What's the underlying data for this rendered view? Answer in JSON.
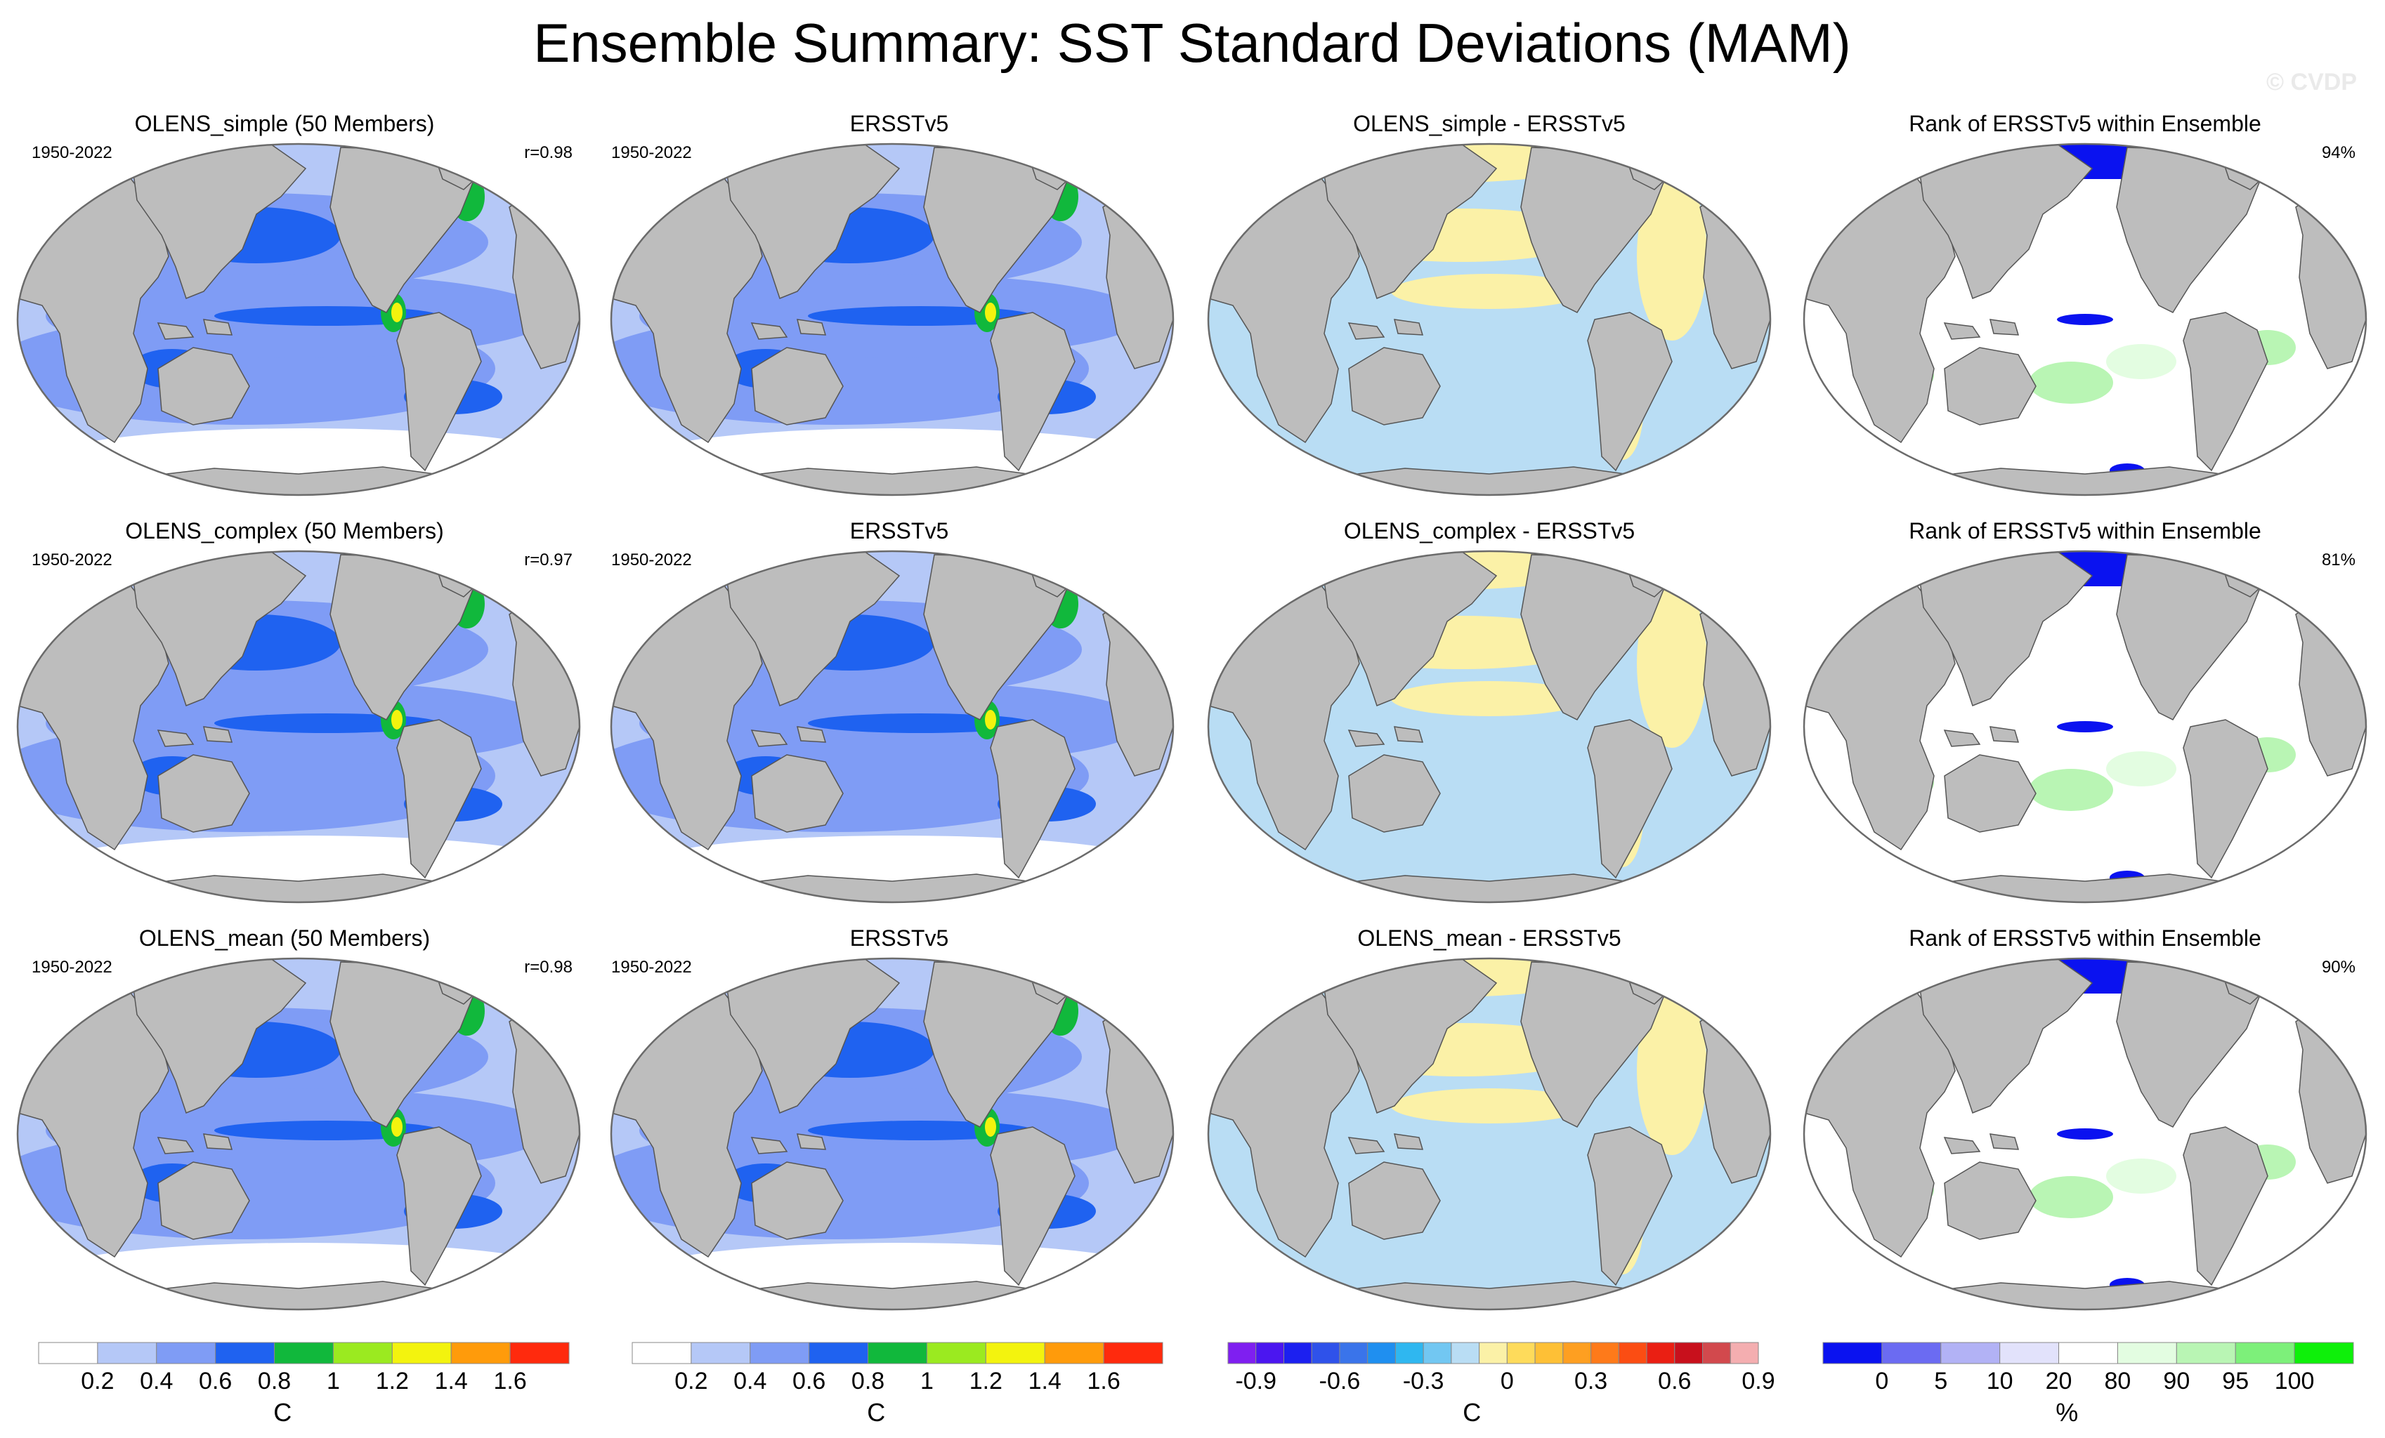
{
  "title": "Ensemble Summary: SST Standard Deviations (MAM)",
  "watermark": "© CVDP",
  "colors": {
    "land": "#bdbdbd",
    "ocean_low": "#b5c8f7",
    "ocean_mid": "#7f9cf5",
    "ocean_high": "#1f62f0",
    "diff_pos": "#fbf1a7",
    "diff_neg": "#b9ddf4",
    "rank_low": "#0a12f0",
    "rank_high": "#7df07a"
  },
  "chart_data": {
    "type": "heatmap",
    "rows": [
      {
        "ensemble": "OLENS_simple (50 Members)",
        "ensemble_color": "#1f6f8b",
        "period": "1950-2022",
        "pattern_correlation": "r=0.98",
        "obs_title": "ERSSTv5",
        "obs_period": "1950-2022",
        "diff_title": "OLENS_simple - ERSSTv5",
        "rank_title": "Rank of ERSSTv5 within Ensemble",
        "rank_percent": "94%"
      },
      {
        "ensemble": "OLENS_complex (50 Members)",
        "ensemble_color": "#5e8a5e",
        "period": "1950-2022",
        "pattern_correlation": "r=0.97",
        "obs_title": "ERSSTv5",
        "obs_period": "1950-2022",
        "diff_title": "OLENS_complex - ERSSTv5",
        "rank_title": "Rank of ERSSTv5 within Ensemble",
        "rank_percent": "81%"
      },
      {
        "ensemble": "OLENS_mean (50 Members)",
        "ensemble_color": "#d7c87a",
        "period": "1950-2022",
        "pattern_correlation": "r=0.98",
        "obs_title": "ERSSTv5",
        "obs_period": "1950-2022",
        "diff_title": "OLENS_mean - ERSSTv5",
        "rank_title": "Rank of ERSSTv5 within Ensemble",
        "rank_percent": "90%"
      }
    ],
    "colorbars": [
      {
        "name": "sst-std",
        "unit": "C",
        "colors": [
          "#ffffff",
          "#b5c8f7",
          "#7f9cf5",
          "#1f62f0",
          "#11b83c",
          "#9bea20",
          "#f3f30e",
          "#ff9b0b",
          "#ff2a0d"
        ],
        "labels": [
          "0.2",
          "0.4",
          "0.6",
          "0.8",
          "1",
          "1.2",
          "1.4",
          "1.6"
        ]
      },
      {
        "name": "sst-std-obs",
        "unit": "C",
        "colors": [
          "#ffffff",
          "#b5c8f7",
          "#7f9cf5",
          "#1f62f0",
          "#11b83c",
          "#9bea20",
          "#f3f30e",
          "#ff9b0b",
          "#ff2a0d"
        ],
        "labels": [
          "0.2",
          "0.4",
          "0.6",
          "0.8",
          "1",
          "1.2",
          "1.4",
          "1.6"
        ]
      },
      {
        "name": "difference",
        "unit": "C",
        "colors": [
          "#7f1ff0",
          "#4b16f0",
          "#1c20f0",
          "#2f52ea",
          "#3a74ea",
          "#1f8ff0",
          "#2fb7f0",
          "#72c7f2",
          "#b9ddf4",
          "#fbf1a7",
          "#fedb5b",
          "#fec036",
          "#fe9f21",
          "#fe7a1a",
          "#fb4d13",
          "#ea1f13",
          "#c8101c",
          "#d2494d",
          "#f4aeb0"
        ],
        "labels": [
          "-0.9",
          "-0.6",
          "-0.3",
          "0",
          "0.3",
          "0.6",
          "0.9"
        ]
      },
      {
        "name": "rank",
        "unit": "%",
        "colors": [
          "#0a12f0",
          "#6b6bf2",
          "#b2b2f5",
          "#e2e2fb",
          "#ffffff",
          "#e3fde1",
          "#b9f5b4",
          "#7df07a",
          "#0ef00a"
        ],
        "labels": [
          "0",
          "5",
          "10",
          "20",
          "80",
          "90",
          "95",
          "100"
        ]
      }
    ]
  }
}
